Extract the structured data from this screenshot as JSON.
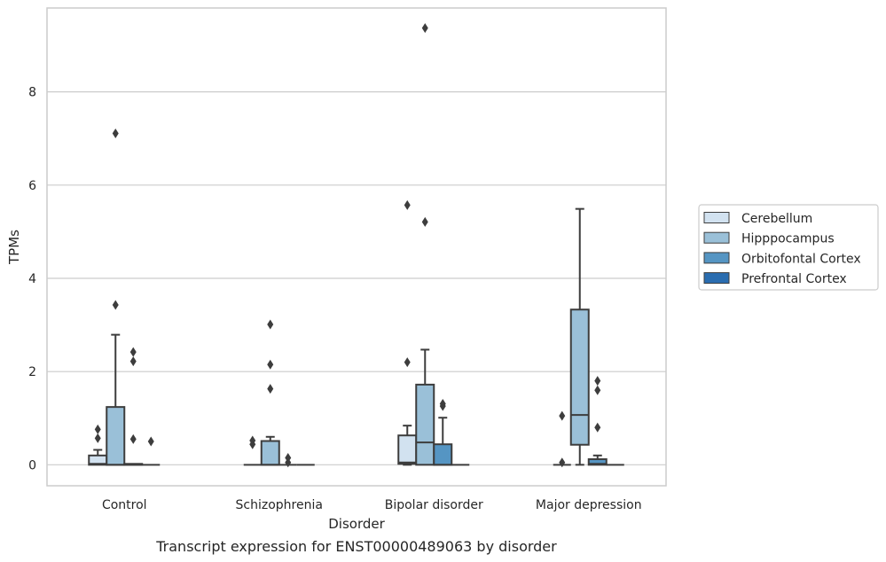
{
  "chart_data": {
    "type": "box",
    "caption": "Transcript expression for ENST00000489063 by disorder",
    "xlabel": "Disorder",
    "ylabel": "TPMs",
    "ylim": [
      -0.45,
      9.8
    ],
    "yticks": [
      0,
      2,
      4,
      6,
      8
    ],
    "grid": true,
    "legend_position": "right",
    "categories": [
      "Control",
      "Schizophrenia",
      "Bipolar disorder",
      "Major depression"
    ],
    "series": [
      {
        "name": "Cerebellum",
        "color": "#d2e2f0",
        "boxes": [
          {
            "q1": 0.0,
            "median": 0.02,
            "q3": 0.2,
            "whislo": 0.0,
            "whishi": 0.32,
            "fliers": [
              0.57,
              0.76
            ]
          },
          {
            "q1": 0.0,
            "median": 0.0,
            "q3": 0.0,
            "whislo": 0.0,
            "whishi": 0.0,
            "fliers": [
              0.44,
              0.52
            ]
          },
          {
            "q1": 0.02,
            "median": 0.05,
            "q3": 0.63,
            "whislo": 0.0,
            "whishi": 0.84,
            "fliers": [
              2.2,
              5.57
            ]
          },
          {
            "q1": 0.0,
            "median": 0.0,
            "q3": 0.0,
            "whislo": 0.0,
            "whishi": 0.0,
            "fliers": [
              0.05,
              1.05
            ]
          }
        ]
      },
      {
        "name": "Hipppocampus",
        "color": "#9ac0d8",
        "boxes": [
          {
            "q1": 0.0,
            "median": 0.0,
            "q3": 1.24,
            "whislo": 0.0,
            "whishi": 2.79,
            "fliers": [
              3.43,
              7.11
            ]
          },
          {
            "q1": 0.0,
            "median": 0.0,
            "q3": 0.51,
            "whislo": 0.0,
            "whishi": 0.6,
            "fliers": [
              1.63,
              2.15,
              3.01
            ]
          },
          {
            "q1": 0.0,
            "median": 0.48,
            "q3": 1.72,
            "whislo": 0.0,
            "whishi": 2.47,
            "fliers": [
              5.21,
              9.37
            ]
          },
          {
            "q1": 0.43,
            "median": 1.07,
            "q3": 3.33,
            "whislo": 0.0,
            "whishi": 5.49,
            "fliers": []
          }
        ]
      },
      {
        "name": "Orbitofontal Cortex",
        "color": "#5595c3",
        "boxes": [
          {
            "q1": 0.0,
            "median": 0.0,
            "q3": 0.02,
            "whislo": 0.0,
            "whishi": 0.02,
            "fliers": [
              0.55,
              2.22,
              2.42
            ]
          },
          {
            "q1": 0.0,
            "median": 0.0,
            "q3": 0.0,
            "whislo": 0.0,
            "whishi": 0.0,
            "fliers": [
              0.05,
              0.15
            ]
          },
          {
            "q1": 0.0,
            "median": 0.0,
            "q3": 0.44,
            "whislo": 0.0,
            "whishi": 1.01,
            "fliers": [
              1.26,
              1.31
            ]
          },
          {
            "q1": 0.0,
            "median": 0.02,
            "q3": 0.12,
            "whislo": 0.0,
            "whishi": 0.2,
            "fliers": [
              0.8,
              1.6,
              1.8
            ]
          }
        ]
      },
      {
        "name": "Prefrontal Cortex",
        "color": "#2a6db0",
        "boxes": [
          {
            "q1": 0.0,
            "median": 0.0,
            "q3": 0.0,
            "whislo": 0.0,
            "whishi": 0.0,
            "fliers": [
              0.5
            ]
          },
          {
            "q1": 0.0,
            "median": 0.0,
            "q3": 0.0,
            "whislo": 0.0,
            "whishi": 0.0,
            "fliers": []
          },
          {
            "q1": 0.0,
            "median": 0.0,
            "q3": 0.0,
            "whislo": 0.0,
            "whishi": 0.0,
            "fliers": []
          },
          {
            "q1": 0.0,
            "median": 0.0,
            "q3": 0.0,
            "whislo": 0.0,
            "whishi": 0.0,
            "fliers": []
          }
        ]
      }
    ]
  }
}
